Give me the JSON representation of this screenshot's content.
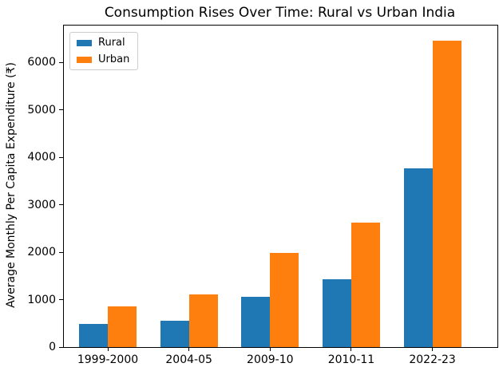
{
  "chart_data": {
    "type": "bar",
    "title": "Consumption Rises Over Time: Rural vs Urban India",
    "xlabel": "",
    "ylabel": "Average Monthly Per Capita Expenditure (₹)",
    "categories": [
      "1999-2000",
      "2004-05",
      "2009-10",
      "2010-11",
      "2022-23"
    ],
    "series": [
      {
        "name": "Rural",
        "color": "#1f77b4",
        "values": [
          486,
          559,
          1054,
          1430,
          3773
        ]
      },
      {
        "name": "Urban",
        "color": "#ff7f0e",
        "values": [
          855,
          1105,
          1984,
          2630,
          6459
        ]
      }
    ],
    "ylim": [
      0,
      6782
    ],
    "yticks": [
      0,
      1000,
      2000,
      3000,
      4000,
      5000,
      6000
    ],
    "grid": false,
    "legend_position": "upper-left",
    "background_color": "#ffffff",
    "spine_color": "#000000"
  }
}
